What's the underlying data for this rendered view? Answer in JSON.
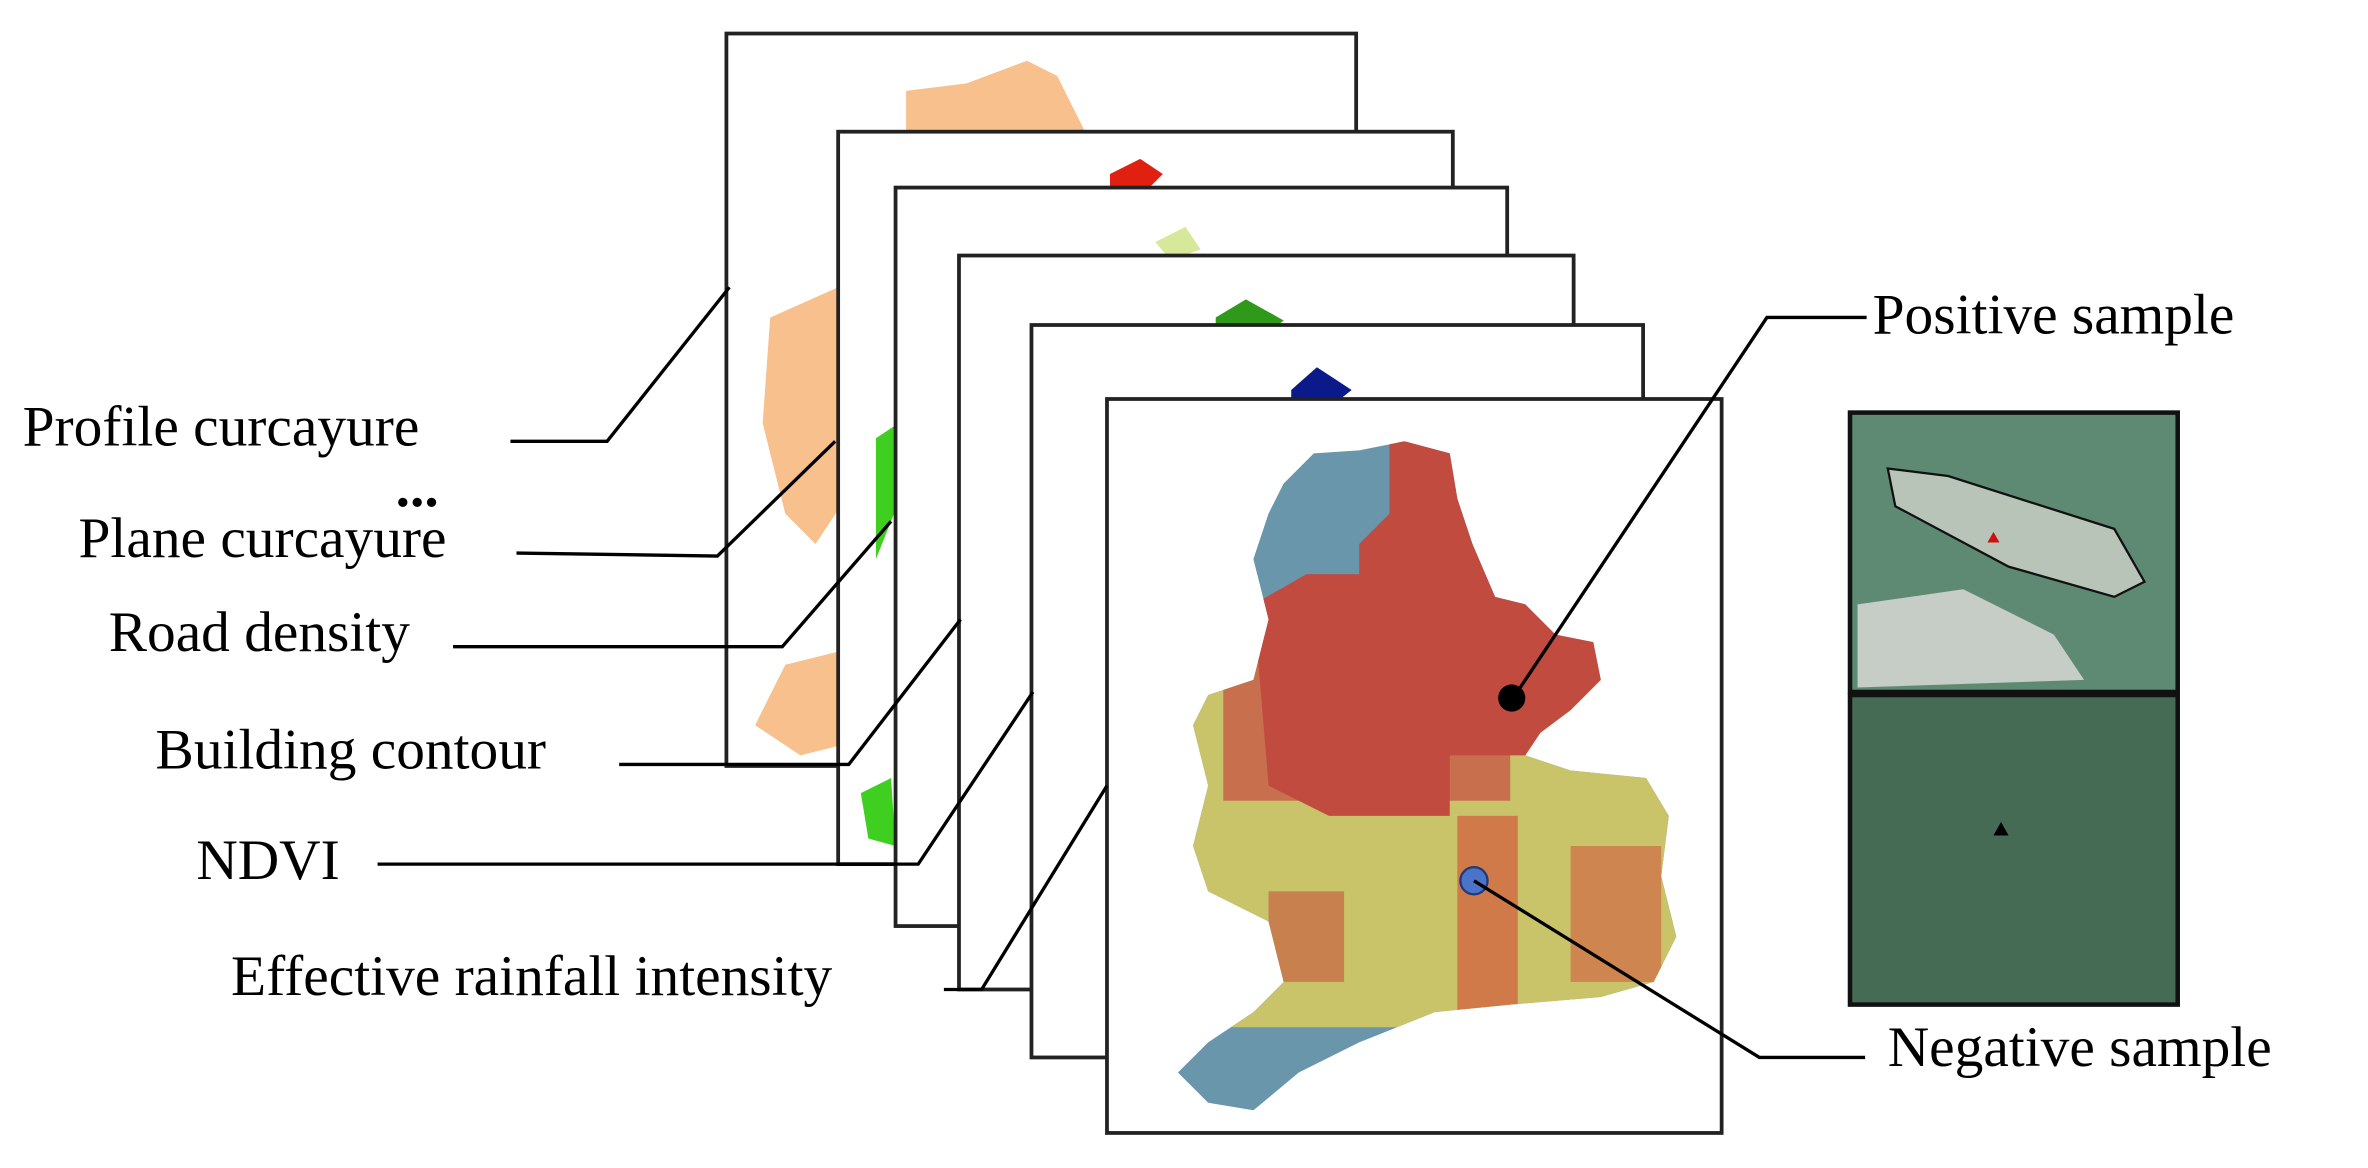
{
  "factor_layers": [
    "Profile curcayure",
    "...",
    "Plane curcayure",
    "Road density",
    "Building contour",
    "NDVI",
    "Effective rainfall intensity"
  ],
  "samples": {
    "positive": "Positive sample",
    "negative": "Negative sample"
  }
}
